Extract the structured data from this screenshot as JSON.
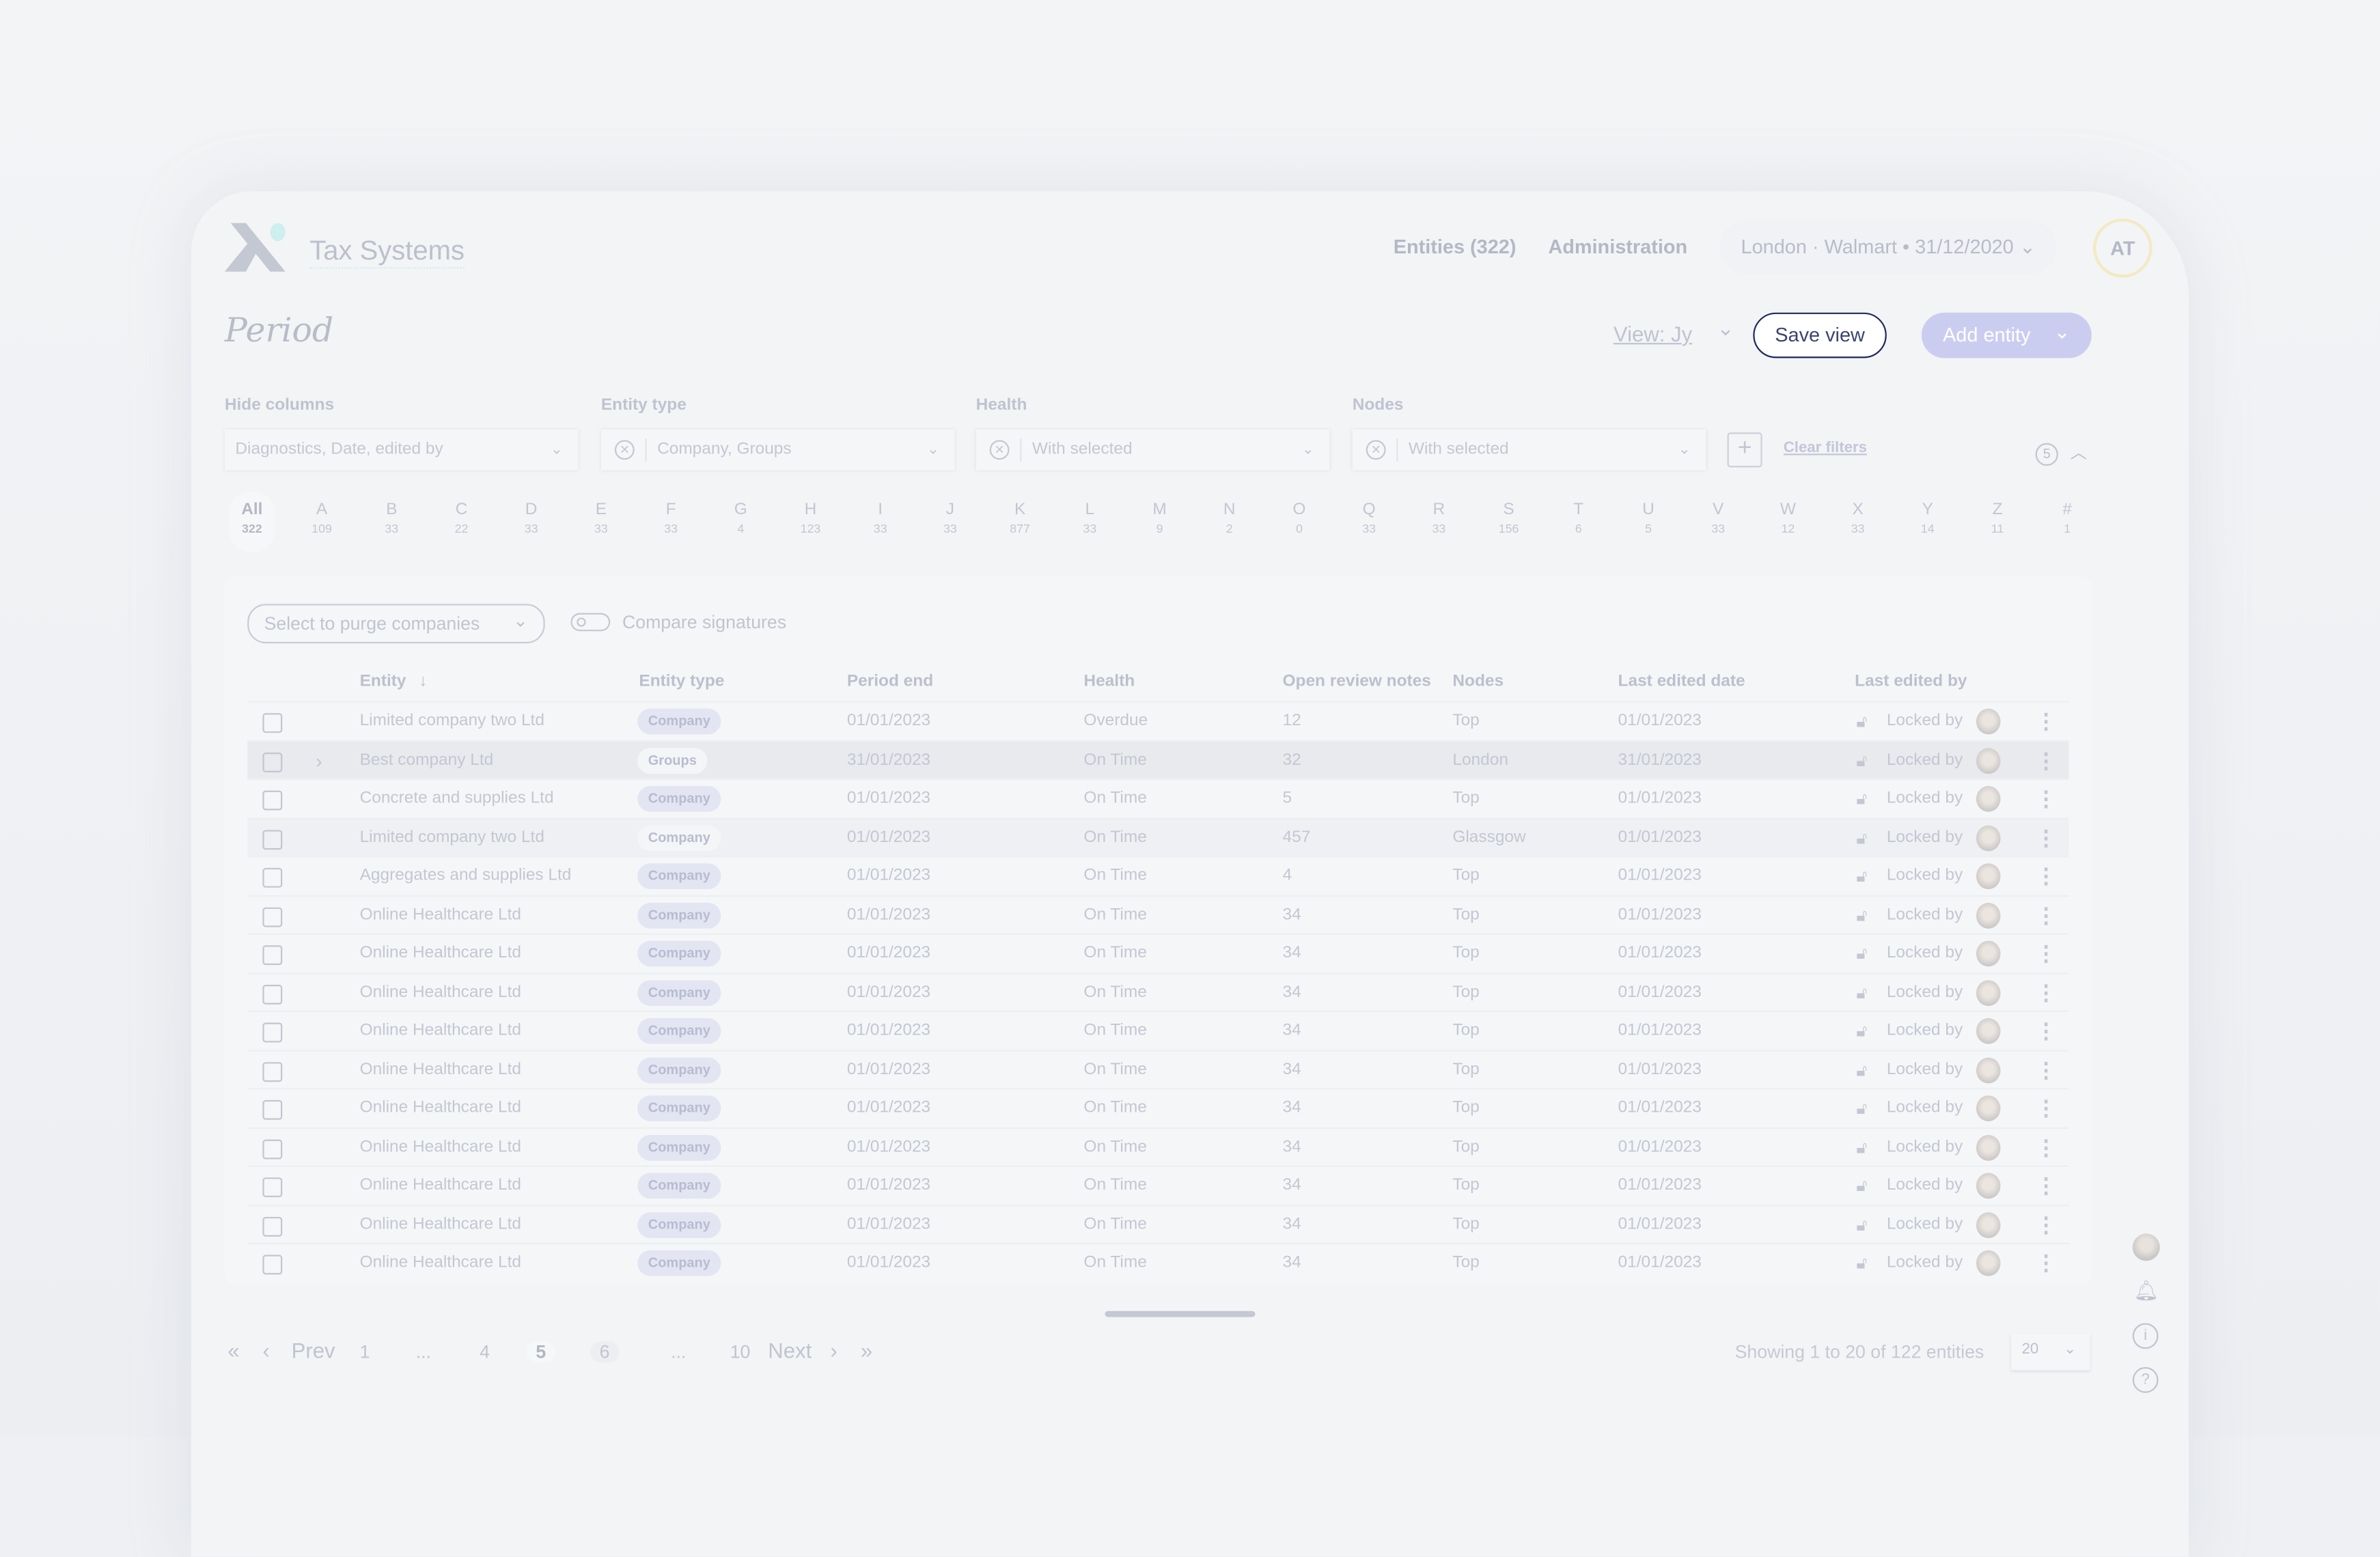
{
  "app": {
    "logo_text": "Tax Systems"
  },
  "header": {
    "nav": [
      {
        "label": "Entities (322)"
      },
      {
        "label": "Administration"
      }
    ],
    "context": "London · Walmart • 31/12/2020",
    "avatar_initials": "AT"
  },
  "page": {
    "title": "Period",
    "view_label": "View: Jy",
    "save_view": "Save view",
    "add_entity": "Add entity",
    "accent": "#cbcdf0",
    "save_border": "#1f2b5e"
  },
  "filters": [
    {
      "label": "Hide columns",
      "value": "Diagnostics, Date, edited by",
      "clearable": false
    },
    {
      "label": "Entity type",
      "value": "Company, Groups",
      "clearable": true
    },
    {
      "label": "Health",
      "value": "With selected",
      "clearable": true
    },
    {
      "label": "Nodes",
      "value": "With selected",
      "clearable": true
    }
  ],
  "clear_filters": "Clear filters",
  "filter_count": "5",
  "alphabet": [
    [
      "All",
      "322"
    ],
    [
      "A",
      "109"
    ],
    [
      "B",
      "33"
    ],
    [
      "C",
      "22"
    ],
    [
      "D",
      "33"
    ],
    [
      "E",
      "33"
    ],
    [
      "F",
      "33"
    ],
    [
      "G",
      "4"
    ],
    [
      "H",
      "123"
    ],
    [
      "I",
      "33"
    ],
    [
      "J",
      "33"
    ],
    [
      "K",
      "877"
    ],
    [
      "L",
      "33"
    ],
    [
      "M",
      "9"
    ],
    [
      "N",
      "2"
    ],
    [
      "O",
      "0"
    ],
    [
      "Q",
      "33"
    ],
    [
      "R",
      "33"
    ],
    [
      "S",
      "156"
    ],
    [
      "T",
      "6"
    ],
    [
      "U",
      "5"
    ],
    [
      "V",
      "33"
    ],
    [
      "W",
      "12"
    ],
    [
      "X",
      "33"
    ],
    [
      "Y",
      "14"
    ],
    [
      "Z",
      "11"
    ],
    [
      "#",
      "1"
    ]
  ],
  "toolbar": {
    "purge_select": "Select to purge companies",
    "compare_toggle": "Compare signatures",
    "compare_on": false
  },
  "table": {
    "columns": [
      "Entity",
      "Entity type",
      "Period end",
      "Health",
      "Open review notes",
      "Nodes",
      "Last edited date",
      "Last edited by"
    ],
    "sort": "Entity descending",
    "rows": [
      [
        "Limited company two Ltd",
        "Company",
        "01/01/2023",
        "Overdue",
        "12",
        "Top",
        "01/01/2023",
        "Locked by"
      ],
      [
        "Best company Ltd",
        "Groups",
        "31/01/2023",
        "On Time",
        "32",
        "London",
        "31/01/2023",
        "Locked by"
      ],
      [
        "Concrete and supplies Ltd",
        "Company",
        "01/01/2023",
        "On Time",
        "5",
        "Top",
        "01/01/2023",
        "Locked by"
      ],
      [
        "Limited company two Ltd",
        "Company",
        "01/01/2023",
        "On Time",
        "457",
        "Glassgow",
        "01/01/2023",
        "Locked by"
      ],
      [
        "Aggregates and supplies Ltd",
        "Company",
        "01/01/2023",
        "On Time",
        "4",
        "Top",
        "01/01/2023",
        "Locked by"
      ],
      [
        "Online Healthcare Ltd",
        "Company",
        "01/01/2023",
        "On Time",
        "34",
        "Top",
        "01/01/2023",
        "Locked by"
      ],
      [
        "Online Healthcare Ltd",
        "Company",
        "01/01/2023",
        "On Time",
        "34",
        "Top",
        "01/01/2023",
        "Locked by"
      ],
      [
        "Online Healthcare Ltd",
        "Company",
        "01/01/2023",
        "On Time",
        "34",
        "Top",
        "01/01/2023",
        "Locked by"
      ],
      [
        "Online Healthcare Ltd",
        "Company",
        "01/01/2023",
        "On Time",
        "34",
        "Top",
        "01/01/2023",
        "Locked by"
      ],
      [
        "Online Healthcare Ltd",
        "Company",
        "01/01/2023",
        "On Time",
        "34",
        "Top",
        "01/01/2023",
        "Locked by"
      ],
      [
        "Online Healthcare Ltd",
        "Company",
        "01/01/2023",
        "On Time",
        "34",
        "Top",
        "01/01/2023",
        "Locked by"
      ],
      [
        "Online Healthcare Ltd",
        "Company",
        "01/01/2023",
        "On Time",
        "34",
        "Top",
        "01/01/2023",
        "Locked by"
      ],
      [
        "Online Healthcare Ltd",
        "Company",
        "01/01/2023",
        "On Time",
        "34",
        "Top",
        "01/01/2023",
        "Locked by"
      ],
      [
        "Online Healthcare Ltd",
        "Company",
        "01/01/2023",
        "On Time",
        "34",
        "Top",
        "01/01/2023",
        "Locked by"
      ],
      [
        "Online Healthcare Ltd",
        "Company",
        "01/01/2023",
        "On Time",
        "34",
        "Top",
        "01/01/2023",
        "Locked by"
      ]
    ]
  },
  "pagination": {
    "prev": "Prev",
    "next": "Next",
    "pages": [
      "1",
      "...",
      "4",
      "5",
      "6",
      "...",
      "10"
    ],
    "current": "5",
    "summary": "Showing 1 to 20 of 122 entities",
    "page_size": "20"
  },
  "side_icons": [
    "avatar",
    "bell-icon",
    "info-icon",
    "help-icon"
  ]
}
